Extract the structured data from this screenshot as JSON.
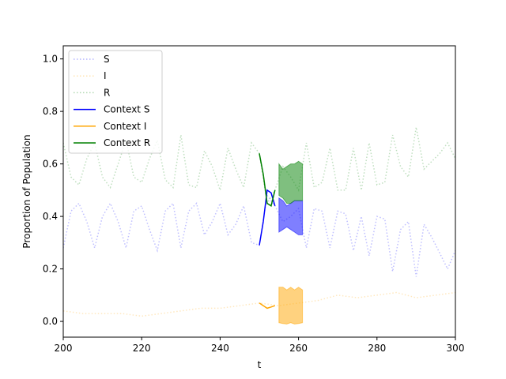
{
  "chart_data": {
    "type": "line",
    "title": "",
    "xlabel": "t",
    "ylabel": "Proportion of Population",
    "xlim": [
      200,
      300
    ],
    "ylim": [
      -0.06,
      1.05
    ],
    "xticks": [
      200,
      220,
      240,
      260,
      280,
      300
    ],
    "yticks": [
      0.0,
      0.2,
      0.4,
      0.6,
      0.8,
      1.0
    ],
    "grid": false,
    "legend_position": "top-left",
    "legend": [
      {
        "label": "S",
        "color": "#0000ff",
        "style": "dotted"
      },
      {
        "label": "I",
        "color": "#ffa500",
        "style": "dotted"
      },
      {
        "label": "R",
        "color": "#008000",
        "style": "dotted"
      },
      {
        "label": "Context S",
        "color": "#0000ff",
        "style": "solid"
      },
      {
        "label": "Context I",
        "color": "#ffa500",
        "style": "solid"
      },
      {
        "label": "Context R",
        "color": "#008000",
        "style": "solid"
      }
    ],
    "series": [
      {
        "name": "S",
        "color": "#0000ff",
        "style": "dotted",
        "x": [
          200,
          202,
          204,
          206,
          208,
          210,
          212,
          214,
          216,
          218,
          220,
          222,
          224,
          226,
          228,
          230,
          232,
          234,
          236,
          238,
          240,
          242,
          244,
          246,
          248,
          250,
          252,
          254,
          256,
          258,
          260,
          262,
          264,
          266,
          268,
          270,
          272,
          274,
          276,
          278,
          280,
          282,
          284,
          286,
          288,
          290,
          292,
          294,
          296,
          298,
          300
        ],
        "y": [
          0.28,
          0.42,
          0.45,
          0.38,
          0.28,
          0.4,
          0.45,
          0.38,
          0.28,
          0.42,
          0.44,
          0.35,
          0.27,
          0.42,
          0.45,
          0.28,
          0.42,
          0.45,
          0.33,
          0.38,
          0.45,
          0.33,
          0.37,
          0.44,
          0.3,
          0.29,
          0.48,
          0.44,
          0.38,
          0.4,
          0.43,
          0.28,
          0.43,
          0.42,
          0.28,
          0.42,
          0.41,
          0.27,
          0.4,
          0.25,
          0.4,
          0.39,
          0.19,
          0.35,
          0.38,
          0.17,
          0.37,
          0.32,
          0.26,
          0.2,
          0.27
        ]
      },
      {
        "name": "I",
        "color": "#ffa500",
        "style": "dotted",
        "x": [
          200,
          205,
          210,
          215,
          220,
          225,
          230,
          235,
          240,
          245,
          250,
          255,
          260,
          265,
          270,
          275,
          280,
          285,
          290,
          295,
          300
        ],
        "y": [
          0.04,
          0.03,
          0.03,
          0.03,
          0.02,
          0.03,
          0.04,
          0.05,
          0.05,
          0.06,
          0.07,
          0.06,
          0.07,
          0.08,
          0.1,
          0.09,
          0.1,
          0.11,
          0.09,
          0.1,
          0.11
        ]
      },
      {
        "name": "R",
        "color": "#008000",
        "style": "dotted",
        "x": [
          200,
          202,
          204,
          206,
          208,
          210,
          212,
          214,
          216,
          218,
          220,
          222,
          224,
          226,
          228,
          230,
          232,
          234,
          236,
          238,
          240,
          242,
          244,
          246,
          248,
          250,
          252,
          254,
          256,
          258,
          260,
          262,
          264,
          266,
          268,
          270,
          272,
          274,
          276,
          278,
          280,
          282,
          284,
          286,
          288,
          290,
          292,
          294,
          296,
          298,
          300
        ],
        "y": [
          0.68,
          0.55,
          0.52,
          0.62,
          0.68,
          0.55,
          0.51,
          0.6,
          0.69,
          0.55,
          0.53,
          0.62,
          0.69,
          0.54,
          0.51,
          0.71,
          0.52,
          0.51,
          0.65,
          0.59,
          0.5,
          0.66,
          0.58,
          0.51,
          0.68,
          0.64,
          0.45,
          0.5,
          0.59,
          0.55,
          0.5,
          0.68,
          0.51,
          0.53,
          0.66,
          0.5,
          0.5,
          0.66,
          0.5,
          0.68,
          0.52,
          0.53,
          0.71,
          0.59,
          0.55,
          0.74,
          0.58,
          0.61,
          0.64,
          0.68,
          0.62
        ]
      },
      {
        "name": "Context S",
        "color": "#0000ff",
        "style": "solid",
        "x": [
          250,
          251,
          252,
          253,
          254
        ],
        "y": [
          0.29,
          0.38,
          0.5,
          0.49,
          0.44
        ]
      },
      {
        "name": "Context I",
        "color": "#ffa500",
        "style": "solid",
        "x": [
          250,
          251,
          252,
          253,
          254
        ],
        "y": [
          0.07,
          0.06,
          0.05,
          0.055,
          0.06
        ]
      },
      {
        "name": "Context R",
        "color": "#008000",
        "style": "solid",
        "x": [
          250,
          251,
          252,
          253,
          254
        ],
        "y": [
          0.64,
          0.56,
          0.45,
          0.44,
          0.5
        ]
      }
    ],
    "bands": [
      {
        "name": "S-band",
        "color": "#0000ff",
        "opacity": 0.5,
        "x": [
          255,
          256,
          257,
          258,
          259,
          260,
          261
        ],
        "upper": [
          0.47,
          0.46,
          0.44,
          0.45,
          0.46,
          0.46,
          0.46
        ],
        "lower": [
          0.34,
          0.35,
          0.36,
          0.35,
          0.34,
          0.33,
          0.33
        ]
      },
      {
        "name": "I-band",
        "color": "#ffa500",
        "opacity": 0.5,
        "x": [
          255,
          256,
          257,
          258,
          259,
          260,
          261
        ],
        "upper": [
          0.13,
          0.13,
          0.12,
          0.13,
          0.12,
          0.13,
          0.12
        ],
        "lower": [
          -0.005,
          -0.008,
          -0.01,
          -0.005,
          -0.01,
          -0.008,
          -0.005
        ]
      },
      {
        "name": "R-band",
        "color": "#008000",
        "opacity": 0.5,
        "x": [
          255,
          256,
          257,
          258,
          259,
          260,
          261
        ],
        "upper": [
          0.6,
          0.58,
          0.59,
          0.6,
          0.6,
          0.61,
          0.6
        ],
        "lower": [
          0.48,
          0.47,
          0.45,
          0.45,
          0.46,
          0.46,
          0.46
        ]
      }
    ]
  }
}
